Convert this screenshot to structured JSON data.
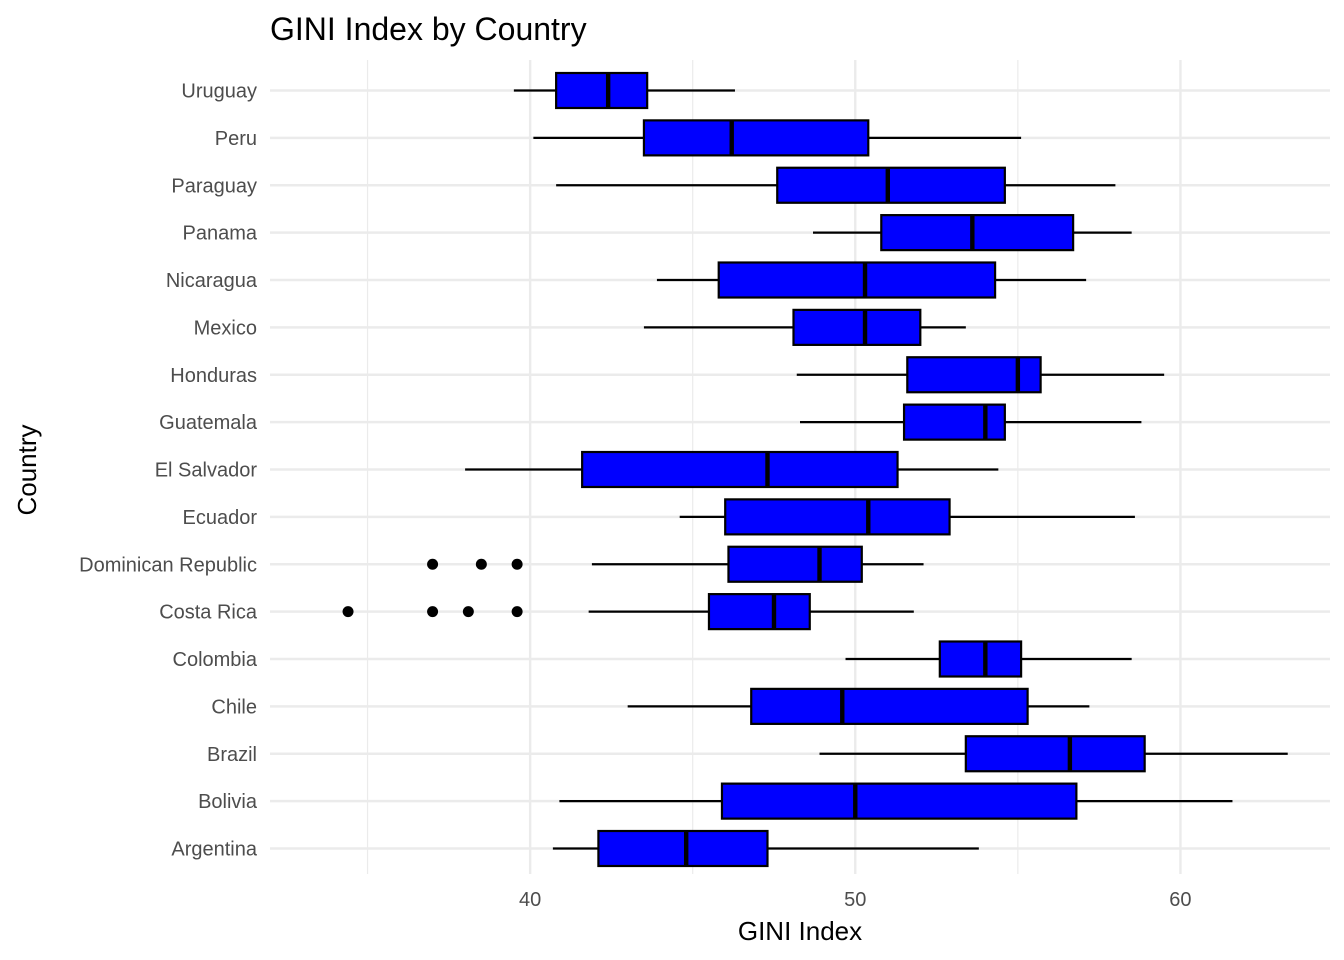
{
  "chart_data": {
    "type": "boxplot",
    "orientation": "horizontal",
    "title": "GINI Index by Country",
    "xlabel": "GINI Index",
    "ylabel": "Country",
    "xlim": [
      32.0,
      64.6
    ],
    "x_ticks": [
      40,
      50,
      60
    ],
    "x_tick_labels": [
      "40",
      "50",
      "60"
    ],
    "x_minor_ticks": [
      35,
      45,
      55
    ],
    "grid": true,
    "legend": "none",
    "colors": {
      "box_fill": "#0000ff",
      "box_stroke": "#000000",
      "grid": "#ebebeb"
    },
    "categories": [
      "Argentina",
      "Bolivia",
      "Brazil",
      "Chile",
      "Colombia",
      "Costa Rica",
      "Dominican Republic",
      "Ecuador",
      "El Salvador",
      "Guatemala",
      "Honduras",
      "Mexico",
      "Nicaragua",
      "Panama",
      "Paraguay",
      "Peru",
      "Uruguay"
    ],
    "boxes": [
      {
        "name": "Argentina",
        "whisker_low": 40.7,
        "q1": 42.1,
        "median": 44.8,
        "q3": 47.3,
        "whisker_high": 53.8,
        "outliers": []
      },
      {
        "name": "Bolivia",
        "whisker_low": 40.9,
        "q1": 45.9,
        "median": 50.0,
        "q3": 56.8,
        "whisker_high": 61.6,
        "outliers": []
      },
      {
        "name": "Brazil",
        "whisker_low": 48.9,
        "q1": 53.4,
        "median": 56.6,
        "q3": 58.9,
        "whisker_high": 63.3,
        "outliers": []
      },
      {
        "name": "Chile",
        "whisker_low": 43.0,
        "q1": 46.8,
        "median": 49.6,
        "q3": 55.3,
        "whisker_high": 57.2,
        "outliers": []
      },
      {
        "name": "Colombia",
        "whisker_low": 49.7,
        "q1": 52.6,
        "median": 54.0,
        "q3": 55.1,
        "whisker_high": 58.5,
        "outliers": []
      },
      {
        "name": "Costa Rica",
        "whisker_low": 41.8,
        "q1": 45.5,
        "median": 47.5,
        "q3": 48.6,
        "whisker_high": 51.8,
        "outliers": [
          34.4,
          37.0,
          38.1,
          39.6
        ]
      },
      {
        "name": "Dominican Republic",
        "whisker_low": 41.9,
        "q1": 46.1,
        "median": 48.9,
        "q3": 50.2,
        "whisker_high": 52.1,
        "outliers": [
          37.0,
          38.5,
          39.6
        ]
      },
      {
        "name": "Ecuador",
        "whisker_low": 44.6,
        "q1": 46.0,
        "median": 50.4,
        "q3": 52.9,
        "whisker_high": 58.6,
        "outliers": []
      },
      {
        "name": "El Salvador",
        "whisker_low": 38.0,
        "q1": 41.6,
        "median": 47.3,
        "q3": 51.3,
        "whisker_high": 54.4,
        "outliers": []
      },
      {
        "name": "Guatemala",
        "whisker_low": 48.3,
        "q1": 51.5,
        "median": 54.0,
        "q3": 54.6,
        "whisker_high": 58.8,
        "outliers": []
      },
      {
        "name": "Honduras",
        "whisker_low": 48.2,
        "q1": 51.6,
        "median": 55.0,
        "q3": 55.7,
        "whisker_high": 59.5,
        "outliers": []
      },
      {
        "name": "Mexico",
        "whisker_low": 43.5,
        "q1": 48.1,
        "median": 50.3,
        "q3": 52.0,
        "whisker_high": 53.4,
        "outliers": []
      },
      {
        "name": "Nicaragua",
        "whisker_low": 43.9,
        "q1": 45.8,
        "median": 50.3,
        "q3": 54.3,
        "whisker_high": 57.1,
        "outliers": []
      },
      {
        "name": "Panama",
        "whisker_low": 48.7,
        "q1": 50.8,
        "median": 53.6,
        "q3": 56.7,
        "whisker_high": 58.5,
        "outliers": []
      },
      {
        "name": "Paraguay",
        "whisker_low": 40.8,
        "q1": 47.6,
        "median": 51.0,
        "q3": 54.6,
        "whisker_high": 58.0,
        "outliers": []
      },
      {
        "name": "Peru",
        "whisker_low": 40.1,
        "q1": 43.5,
        "median": 46.2,
        "q3": 50.4,
        "whisker_high": 55.1,
        "outliers": []
      },
      {
        "name": "Uruguay",
        "whisker_low": 39.5,
        "q1": 40.8,
        "median": 42.4,
        "q3": 43.6,
        "whisker_high": 46.3,
        "outliers": []
      }
    ]
  }
}
